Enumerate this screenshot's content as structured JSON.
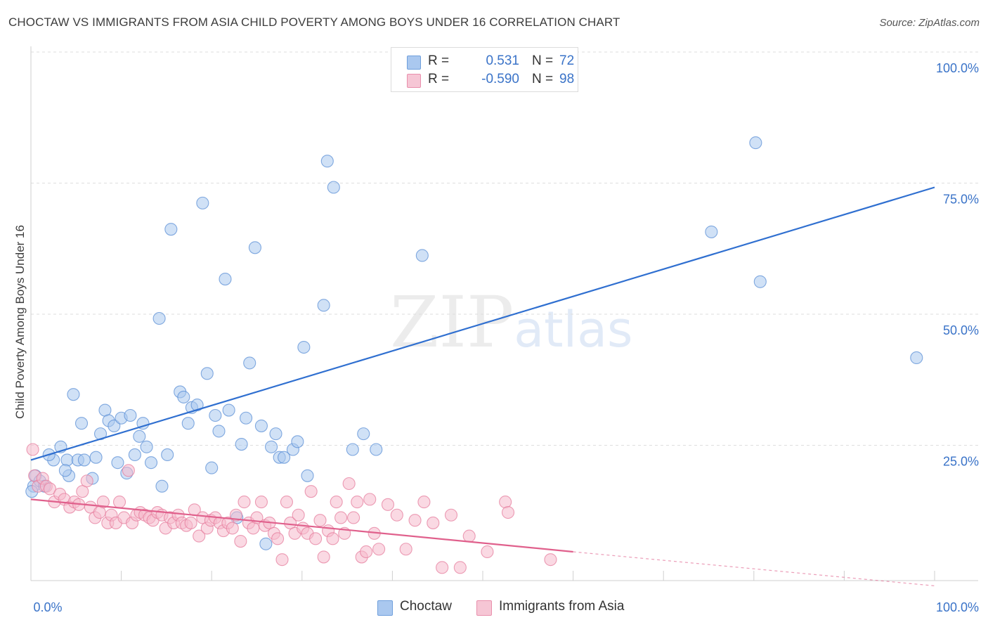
{
  "header": {
    "title": "CHOCTAW VS IMMIGRANTS FROM ASIA CHILD POVERTY AMONG BOYS UNDER 16 CORRELATION CHART",
    "source": "Source: ZipAtlas.com"
  },
  "watermark": {
    "zip": "ZIP",
    "atlas": "atlas"
  },
  "legend_top": [
    {
      "r_label": "R =",
      "r_value": "0.531",
      "n_label": "N =",
      "n_value": "72",
      "color": "#aac8ef"
    },
    {
      "r_label": "R =",
      "r_value": "-0.590",
      "n_label": "N =",
      "n_value": "98",
      "color": "#f6b9cc"
    }
  ],
  "legend_bottom": [
    {
      "label": "Choctaw",
      "color": "#aac8ef"
    },
    {
      "label": "Immigrants from Asia",
      "color": "#f6b9cc"
    }
  ],
  "chart_data": {
    "type": "scatter",
    "title": "CHOCTAW VS IMMIGRANTS FROM ASIA CHILD POVERTY AMONG BOYS UNDER 16 CORRELATION CHART",
    "ylabel": "Child Poverty Among Boys Under 16",
    "xlabel": "",
    "xlim": [
      0,
      100
    ],
    "ylim": [
      0,
      100
    ],
    "x_tick_labels": [
      {
        "value": 0,
        "label": "0.0%"
      },
      {
        "value": 100,
        "label": "100.0%"
      }
    ],
    "y_tick_labels": [
      {
        "value": 25,
        "label": "25.0%"
      },
      {
        "value": 50,
        "label": "50.0%"
      },
      {
        "value": 75,
        "label": "75.0%"
      },
      {
        "value": 100,
        "label": "100.0%"
      }
    ],
    "grid": true,
    "legend_position": "top-center",
    "series": [
      {
        "name": "Choctaw",
        "color": "#aac8ef",
        "stroke": "#5b8fd6",
        "trend": {
          "x": [
            0,
            100
          ],
          "y": [
            23,
            75
          ],
          "color": "#2f6fd0"
        },
        "points": [
          [
            0.3,
            18
          ],
          [
            0.5,
            20
          ],
          [
            1,
            19
          ],
          [
            1.5,
            18
          ],
          [
            2.5,
            23
          ],
          [
            3.3,
            25.5
          ],
          [
            4,
            23
          ],
          [
            4.2,
            20
          ],
          [
            4.7,
            35.5
          ],
          [
            5.2,
            23
          ],
          [
            5.6,
            30
          ],
          [
            5.9,
            23
          ],
          [
            6.8,
            19.5
          ],
          [
            7.2,
            23.5
          ],
          [
            7.7,
            28
          ],
          [
            8.2,
            32.5
          ],
          [
            8.6,
            30.5
          ],
          [
            9.2,
            29.5
          ],
          [
            9.6,
            22.5
          ],
          [
            10,
            31
          ],
          [
            10.6,
            20.5
          ],
          [
            11,
            31.5
          ],
          [
            11.5,
            24
          ],
          [
            12,
            27.5
          ],
          [
            12.4,
            30
          ],
          [
            12.8,
            25.5
          ],
          [
            13.3,
            22.5
          ],
          [
            14.2,
            50
          ],
          [
            14.5,
            18
          ],
          [
            15.1,
            24
          ],
          [
            15.5,
            67
          ],
          [
            16.5,
            36
          ],
          [
            16.9,
            35
          ],
          [
            17.4,
            30
          ],
          [
            17.8,
            33
          ],
          [
            18.4,
            33.5
          ],
          [
            19,
            72
          ],
          [
            19.5,
            39.5
          ],
          [
            20,
            21.5
          ],
          [
            20.4,
            31.5
          ],
          [
            20.8,
            28.5
          ],
          [
            21.5,
            57.5
          ],
          [
            21.9,
            32.5
          ],
          [
            22.8,
            12
          ],
          [
            23.3,
            26
          ],
          [
            23.8,
            31
          ],
          [
            24.2,
            41.5
          ],
          [
            24.8,
            63.5
          ],
          [
            25.5,
            29.5
          ],
          [
            26,
            7
          ],
          [
            26.6,
            25.5
          ],
          [
            27.1,
            28
          ],
          [
            27.5,
            23.5
          ],
          [
            28,
            23.5
          ],
          [
            29,
            25
          ],
          [
            29.5,
            26.5
          ],
          [
            30.2,
            44.5
          ],
          [
            30.6,
            20
          ],
          [
            32.4,
            52.5
          ],
          [
            32.8,
            80
          ],
          [
            33.5,
            75
          ],
          [
            35.6,
            25
          ],
          [
            36.8,
            28
          ],
          [
            38.2,
            25
          ],
          [
            43.3,
            62
          ],
          [
            75.3,
            66.5
          ],
          [
            80.2,
            83.5
          ],
          [
            80.7,
            57
          ],
          [
            98,
            42.5
          ],
          [
            0.1,
            17
          ],
          [
            3.8,
            21
          ],
          [
            2,
            24
          ]
        ]
      },
      {
        "name": "Immigrants from Asia",
        "color": "#f6b9cc",
        "stroke": "#e67d9e",
        "trend": {
          "x": [
            0,
            60
          ],
          "y": [
            15.5,
            5.5
          ],
          "dashed_x": [
            60,
            100
          ],
          "dashed_y": [
            5.5,
            -1
          ],
          "color": "#e0608c"
        },
        "points": [
          [
            0.2,
            25
          ],
          [
            0.4,
            20
          ],
          [
            0.8,
            18
          ],
          [
            1.3,
            19.5
          ],
          [
            1.7,
            18
          ],
          [
            2.1,
            17.5
          ],
          [
            2.6,
            15
          ],
          [
            3.2,
            16.5
          ],
          [
            3.7,
            15.5
          ],
          [
            4.3,
            14
          ],
          [
            4.8,
            15
          ],
          [
            5.3,
            14.5
          ],
          [
            5.7,
            17
          ],
          [
            6.2,
            19
          ],
          [
            6.6,
            14
          ],
          [
            7.1,
            12
          ],
          [
            7.6,
            13
          ],
          [
            8,
            15
          ],
          [
            8.5,
            11
          ],
          [
            8.9,
            12.5
          ],
          [
            9.4,
            11
          ],
          [
            9.8,
            15
          ],
          [
            10.3,
            12
          ],
          [
            10.8,
            21
          ],
          [
            11.2,
            11
          ],
          [
            11.7,
            12.5
          ],
          [
            12.1,
            13
          ],
          [
            12.6,
            12.5
          ],
          [
            13.1,
            12
          ],
          [
            13.5,
            11.5
          ],
          [
            14,
            13
          ],
          [
            14.5,
            12.5
          ],
          [
            14.9,
            10
          ],
          [
            15.4,
            12
          ],
          [
            15.8,
            11
          ],
          [
            16.3,
            12.5
          ],
          [
            16.7,
            11
          ],
          [
            17.2,
            10.5
          ],
          [
            17.7,
            11
          ],
          [
            18.1,
            13.5
          ],
          [
            18.6,
            8.5
          ],
          [
            19,
            12
          ],
          [
            19.5,
            10
          ],
          [
            19.9,
            11.5
          ],
          [
            20.4,
            12
          ],
          [
            20.9,
            11
          ],
          [
            21.3,
            9.5
          ],
          [
            21.8,
            11
          ],
          [
            22.3,
            10
          ],
          [
            22.7,
            12.5
          ],
          [
            23.2,
            7.5
          ],
          [
            23.6,
            15
          ],
          [
            24.1,
            11
          ],
          [
            24.6,
            10
          ],
          [
            25,
            12
          ],
          [
            25.5,
            15
          ],
          [
            25.9,
            10.5
          ],
          [
            26.4,
            11
          ],
          [
            26.9,
            9
          ],
          [
            27.3,
            8
          ],
          [
            27.8,
            4
          ],
          [
            28.3,
            15
          ],
          [
            28.7,
            11
          ],
          [
            29.2,
            9
          ],
          [
            29.6,
            12.5
          ],
          [
            30.1,
            10
          ],
          [
            30.6,
            9
          ],
          [
            31,
            17
          ],
          [
            31.5,
            8
          ],
          [
            32,
            11.5
          ],
          [
            32.4,
            4.5
          ],
          [
            32.9,
            9.5
          ],
          [
            33.4,
            8
          ],
          [
            33.8,
            15
          ],
          [
            34.3,
            12
          ],
          [
            34.7,
            9
          ],
          [
            35.2,
            18.5
          ],
          [
            35.7,
            12
          ],
          [
            36.1,
            15
          ],
          [
            36.6,
            4.5
          ],
          [
            37.1,
            5.5
          ],
          [
            37.5,
            15.5
          ],
          [
            38,
            9
          ],
          [
            38.5,
            6
          ],
          [
            39.5,
            14.5
          ],
          [
            40.5,
            12.5
          ],
          [
            41.5,
            6
          ],
          [
            42.5,
            11.5
          ],
          [
            43.5,
            15
          ],
          [
            44.5,
            11
          ],
          [
            45.5,
            2.5
          ],
          [
            46.5,
            12.5
          ],
          [
            47.5,
            2.5
          ],
          [
            48.5,
            8.5
          ],
          [
            50.5,
            5.5
          ],
          [
            52.5,
            15
          ],
          [
            52.8,
            13
          ],
          [
            57.5,
            4
          ]
        ]
      }
    ]
  }
}
